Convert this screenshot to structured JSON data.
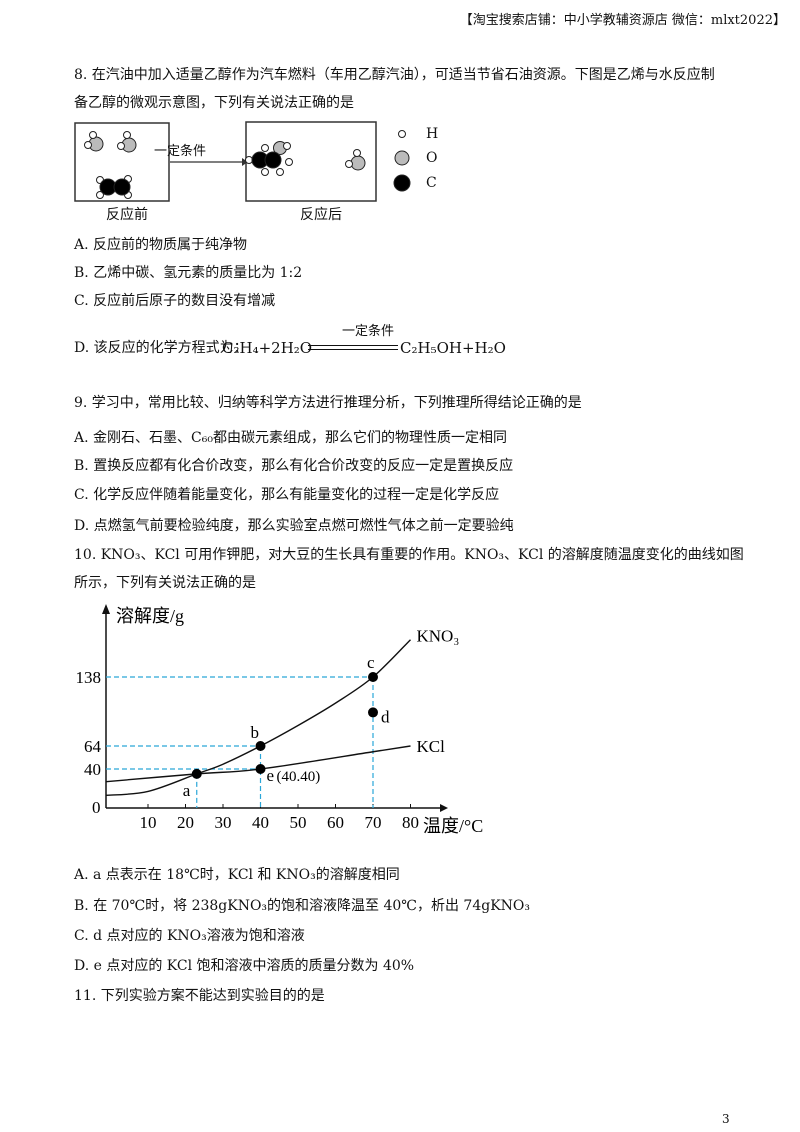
{
  "header": "【淘宝搜索店铺：中小学教辅资源店  微信：mlxt2022】",
  "page_number": "3",
  "q8": {
    "line1": "8. 在汽油中加入适量乙醇作为汽车燃料（车用乙醇汽油），可适当节省石油资源。下图是乙烯与水反应制",
    "line2": "备乙醇的微观示意图，下列有关说法正确的是",
    "diagram": {
      "arrow_label": "一定条件",
      "before_label": "反应前",
      "after_label": "反应后",
      "legend": [
        {
          "symbol": "H",
          "color": "#ffffff"
        },
        {
          "symbol": "O",
          "color": "#bbbbbb"
        },
        {
          "symbol": "C",
          "color": "#000000"
        }
      ]
    },
    "options": {
      "A": "A. 反应前的物质属于纯净物",
      "B": "B. 乙烯中碳、氢元素的质量比为 1:2",
      "C": "C. 反应前后原子的数目没有增减",
      "D_prefix": "D. 该反应的化学方程式为：",
      "D_condition": "一定条件",
      "D_left": "C₂H₄+2H₂O",
      "D_right": "C₂H₅OH+H₂O"
    }
  },
  "q9": {
    "line1": "9. 学习中，常用比较、归纳等科学方法进行推理分析，下列推理所得结论正确的是",
    "options": {
      "A": "A. 金刚石、石墨、C₆₀都由碳元素组成，那么它们的物理性质一定相同",
      "B": "B. 置换反应都有化合价改变，那么有化合价改变的反应一定是置换反应",
      "C": "C. 化学反应伴随着能量变化，那么有能量变化的过程一定是化学反应",
      "D": "D. 点燃氢气前要检验纯度，那么实验室点燃可燃性气体之前一定要验纯"
    }
  },
  "q10": {
    "line1": "10. KNO₃、KCl 可用作钾肥，对大豆的生长具有重要的作用。KNO₃、KCl 的溶解度随温度变化的曲线如图",
    "line2": "所示，下列有关说法正确的是",
    "options": {
      "A": "A. a 点表示在 18℃时，KCl 和 KNO₃的溶解度相同",
      "B": "B. 在 70℃时，将 238gKNO₃的饱和溶液降温至 40℃，析出 74gKNO₃",
      "C": "C. d 点对应的 KNO₃溶液为饱和溶液",
      "D": "D. e 点对应的 KCl 饱和溶液中溶质的质量分数为 40%"
    }
  },
  "q11": {
    "line1": "11. 下列实验方案不能达到实验目的的是"
  },
  "chart_data": {
    "type": "line",
    "xlabel": "温度/°C",
    "ylabel": "溶解度/g",
    "x_ticks": [
      "10",
      "20",
      "30",
      "40",
      "50",
      "60",
      "70",
      "80"
    ],
    "y_ticks": [
      "0",
      "40",
      "64",
      "138"
    ],
    "origin_label": "0",
    "xlim": [
      0,
      85
    ],
    "series": [
      {
        "name": "KNO₃",
        "points": [
          [
            0,
            13
          ],
          [
            10,
            17
          ],
          [
            23,
            35
          ],
          [
            30,
            45
          ],
          [
            40,
            64
          ],
          [
            50,
            86
          ],
          [
            60,
            110
          ],
          [
            70,
            138
          ],
          [
            80,
            178
          ]
        ]
      },
      {
        "name": "KCl",
        "points": [
          [
            0,
            27
          ],
          [
            23,
            35
          ],
          [
            40,
            40
          ],
          [
            70,
            58
          ],
          [
            80,
            64
          ]
        ]
      }
    ],
    "marked_points": [
      {
        "label": "a",
        "x": 23,
        "y": 35
      },
      {
        "label": "b",
        "x": 40,
        "y": 64
      },
      {
        "label": "c",
        "x": 70,
        "y": 138
      },
      {
        "label": "d",
        "x": 70,
        "y": 100
      },
      {
        "label": "e",
        "x": 40,
        "y": 40,
        "annotation": "(40.40)"
      }
    ],
    "guide_color": "#2aa6d8"
  }
}
